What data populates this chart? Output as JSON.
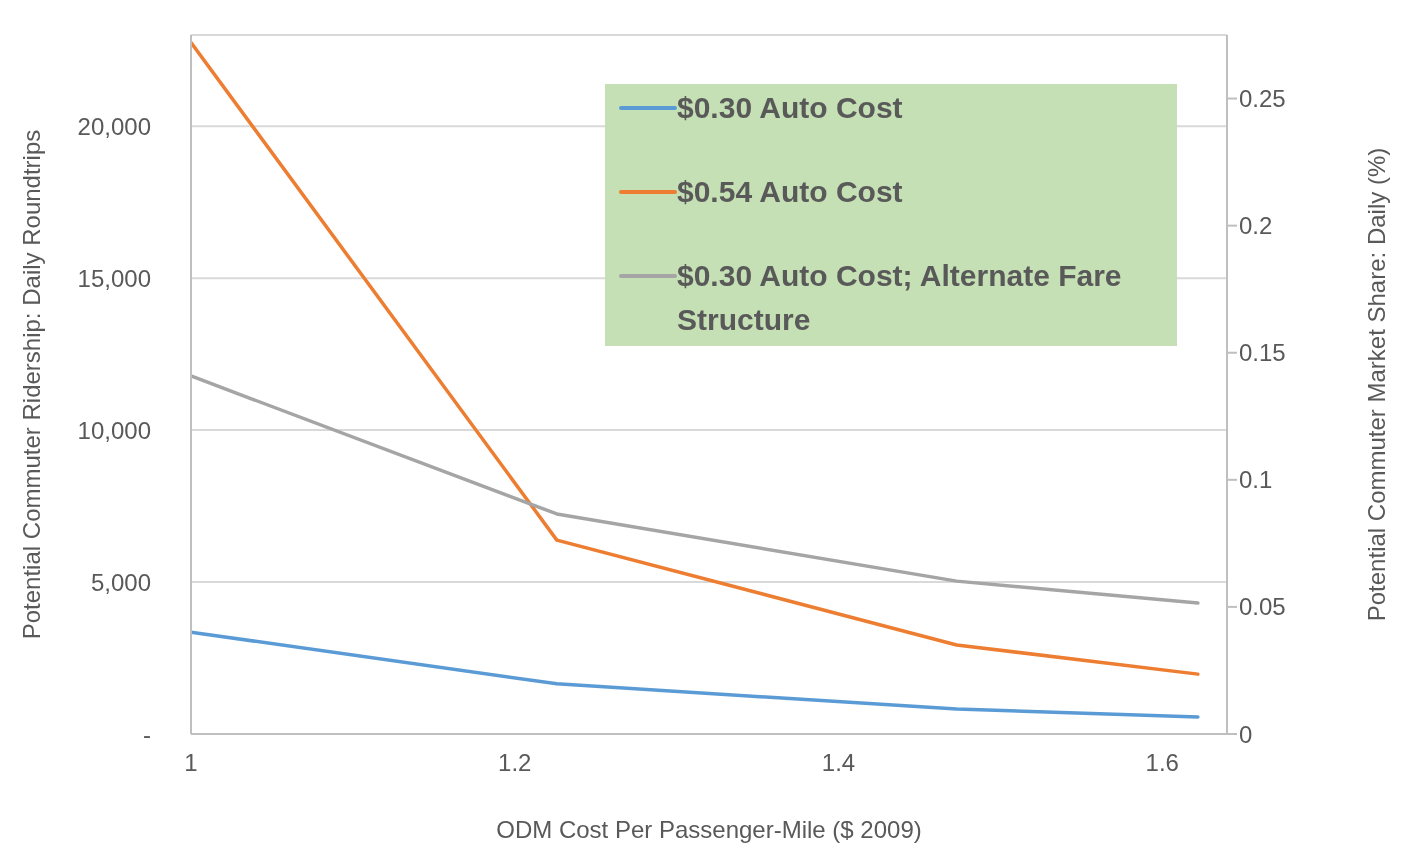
{
  "chart_data": {
    "type": "line",
    "xlabel": "ODM Cost Per Passenger-Mile ($ 2009)",
    "ylabel": "Potential Commuter Ridership: Daily Roundtrips",
    "y2label": "Potential Commuter Market Share: Daily (%)",
    "x": [
      1.0,
      1.226,
      1.473,
      1.622
    ],
    "series": [
      {
        "name": "$0.30 Auto Cost",
        "color": "#5b9bd5",
        "values": [
          3350,
          1650,
          820,
          560
        ]
      },
      {
        "name": "$0.54 Auto Cost",
        "color": "#ed7d31",
        "values": [
          22750,
          6380,
          2930,
          1970
        ]
      },
      {
        "name": "$0.30 Auto Cost; Alternate Fare Structure",
        "color": "#a5a5a5",
        "values": [
          11780,
          7240,
          5030,
          4310
        ]
      }
    ],
    "xlim": [
      1,
      1.64
    ],
    "xticks": [
      1,
      1.2,
      1.4,
      1.6
    ],
    "ylim": [
      0,
      23000
    ],
    "yticks": [
      {
        "value": 0,
        "label": "-"
      },
      {
        "value": 5000,
        "label": "5,000"
      },
      {
        "value": 10000,
        "label": "10,000"
      },
      {
        "value": 15000,
        "label": "15,000"
      },
      {
        "value": 20000,
        "label": "20,000"
      }
    ],
    "y2lim": [
      0,
      0.275
    ],
    "y2ticks": [
      0,
      0.05,
      0.1,
      0.15,
      0.2,
      0.25
    ],
    "grid": "y",
    "legend": "top right",
    "marker": "none",
    "line_style": "solid"
  }
}
